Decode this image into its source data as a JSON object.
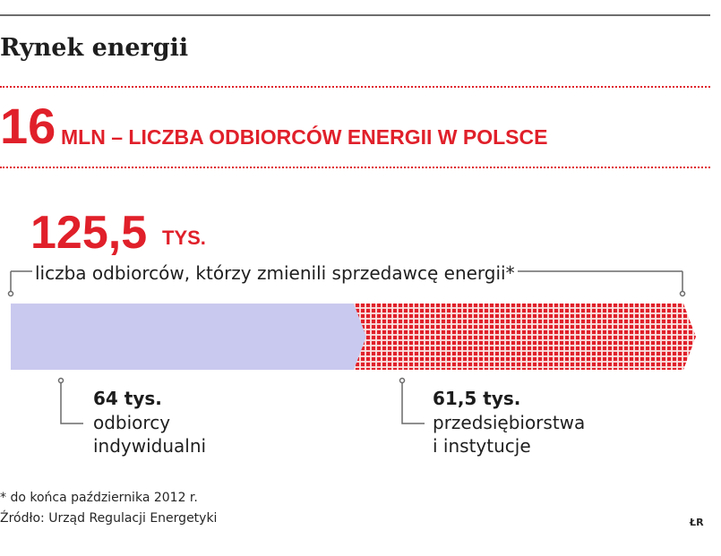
{
  "header": {
    "title": "Rynek energii"
  },
  "headline": {
    "value": "16",
    "text": "MLN – LICZBA ODBIORCÓW ENERGII W POLSCE"
  },
  "total": {
    "value": "125,5",
    "unit": "TYS.",
    "caption": "liczba odbiorców, którzy zmienili sprzedawcę energii*"
  },
  "segments": [
    {
      "value_label": "64 tys.",
      "label_line1": "odbiorcy",
      "label_line2": "indywidualni"
    },
    {
      "value_label": "61,5 tys.",
      "label_line1": "przedsiębiorstwa",
      "label_line2": "i instytucje"
    }
  ],
  "chart_data": {
    "type": "bar",
    "orientation": "horizontal-stacked",
    "title": "liczba odbiorców, którzy zmienili sprzedawcę energii*",
    "unit": "tys.",
    "total": 125.5,
    "categories": [
      "odbiorcy indywidualni",
      "przedsiębiorstwa i instytucje"
    ],
    "values": [
      64,
      61.5
    ],
    "colors": [
      "#c9c9ef",
      "#e0202a"
    ]
  },
  "footer": {
    "footnote": "* do końca października 2012 r.",
    "source": "Źródło: Urząd Regulacji Energetyki",
    "credit": "ŁR"
  }
}
